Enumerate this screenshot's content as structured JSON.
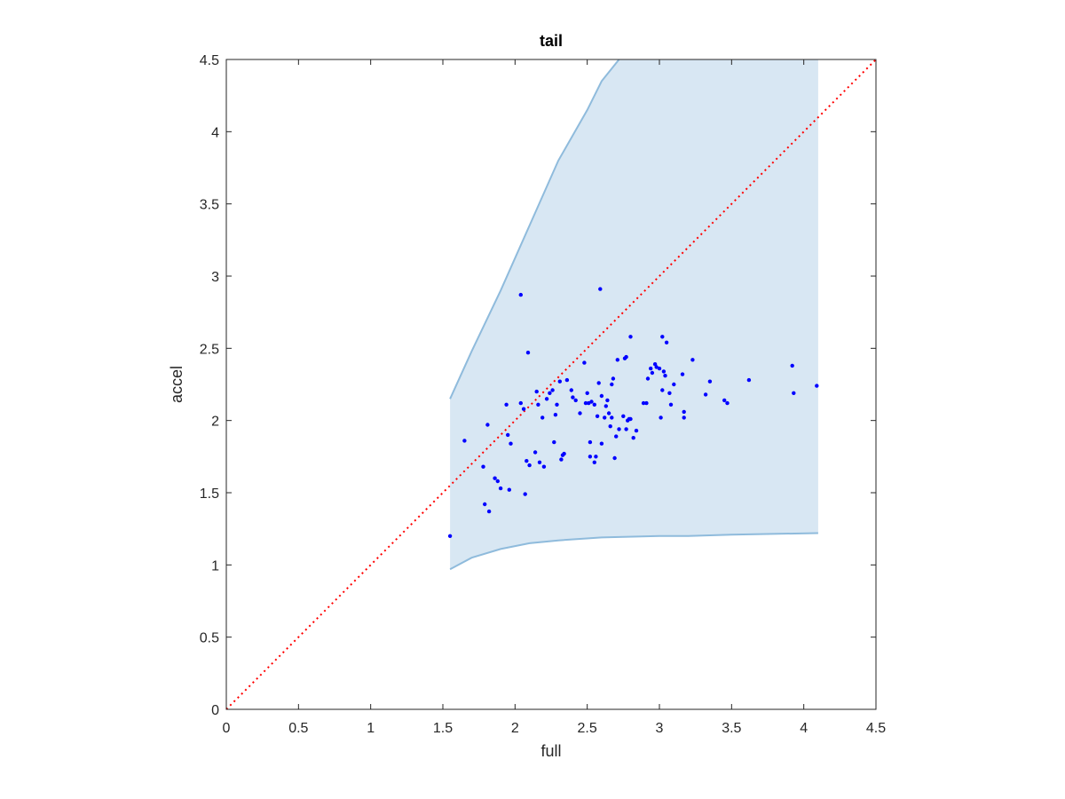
{
  "chart_data": {
    "type": "scatter",
    "title": "tail",
    "xlabel": "full",
    "ylabel": "accel",
    "xlim": [
      0,
      4.5
    ],
    "ylim": [
      0,
      4.5
    ],
    "xticks": [
      0,
      0.5,
      1,
      1.5,
      2,
      2.5,
      3,
      3.5,
      4,
      4.5
    ],
    "yticks": [
      0,
      0.5,
      1,
      1.5,
      2,
      2.5,
      3,
      3.5,
      4,
      4.5
    ],
    "xtick_labels": [
      "0",
      "0.5",
      "1",
      "1.5",
      "2",
      "2.5",
      "3",
      "3.5",
      "4",
      "4.5"
    ],
    "ytick_labels": [
      "0",
      "0.5",
      "1",
      "1.5",
      "2",
      "2.5",
      "3",
      "3.5",
      "4",
      "4.5"
    ],
    "grid": false,
    "reference_line": {
      "x": [
        0,
        4.5
      ],
      "y": [
        0,
        4.5
      ],
      "color": "#ff0000",
      "style": "dotted"
    },
    "band": {
      "color": "#d8e7f3",
      "edge_color": "#8fbbdc",
      "upper": [
        [
          1.55,
          2.15
        ],
        [
          1.7,
          2.48
        ],
        [
          1.9,
          2.9
        ],
        [
          2.1,
          3.35
        ],
        [
          2.3,
          3.8
        ],
        [
          2.5,
          4.15
        ],
        [
          2.6,
          4.35
        ],
        [
          2.72,
          4.5
        ],
        [
          4.1,
          4.5
        ]
      ],
      "lower": [
        [
          1.55,
          0.97
        ],
        [
          1.7,
          1.05
        ],
        [
          1.9,
          1.11
        ],
        [
          2.1,
          1.15
        ],
        [
          2.3,
          1.17
        ],
        [
          2.6,
          1.19
        ],
        [
          3.0,
          1.2
        ],
        [
          3.2,
          1.2
        ],
        [
          3.5,
          1.21
        ],
        [
          4.1,
          1.22
        ]
      ]
    },
    "series": [
      {
        "color": "#0000ff",
        "points": [
          [
            1.55,
            1.2
          ],
          [
            1.65,
            1.86
          ],
          [
            1.78,
            1.68
          ],
          [
            1.79,
            1.42
          ],
          [
            1.81,
            1.97
          ],
          [
            1.82,
            1.37
          ],
          [
            1.86,
            1.6
          ],
          [
            1.88,
            1.58
          ],
          [
            1.9,
            1.53
          ],
          [
            1.94,
            2.11
          ],
          [
            1.95,
            1.9
          ],
          [
            1.96,
            1.52
          ],
          [
            1.97,
            1.84
          ],
          [
            2.04,
            2.87
          ],
          [
            2.04,
            2.12
          ],
          [
            2.06,
            2.08
          ],
          [
            2.07,
            1.49
          ],
          [
            2.08,
            1.72
          ],
          [
            2.09,
            2.47
          ],
          [
            2.1,
            1.69
          ],
          [
            2.14,
            1.78
          ],
          [
            2.15,
            2.2
          ],
          [
            2.16,
            2.11
          ],
          [
            2.17,
            1.71
          ],
          [
            2.19,
            2.02
          ],
          [
            2.2,
            1.68
          ],
          [
            2.22,
            2.15
          ],
          [
            2.24,
            2.19
          ],
          [
            2.26,
            2.21
          ],
          [
            2.27,
            1.85
          ],
          [
            2.28,
            2.04
          ],
          [
            2.29,
            2.11
          ],
          [
            2.31,
            2.27
          ],
          [
            2.32,
            1.73
          ],
          [
            2.33,
            1.76
          ],
          [
            2.34,
            1.77
          ],
          [
            2.36,
            2.28
          ],
          [
            2.39,
            2.21
          ],
          [
            2.4,
            2.16
          ],
          [
            2.42,
            2.14
          ],
          [
            2.45,
            2.05
          ],
          [
            2.48,
            2.4
          ],
          [
            2.49,
            2.12
          ],
          [
            2.5,
            2.19
          ],
          [
            2.51,
            2.12
          ],
          [
            2.52,
            1.85
          ],
          [
            2.52,
            1.75
          ],
          [
            2.53,
            2.13
          ],
          [
            2.55,
            2.11
          ],
          [
            2.55,
            1.71
          ],
          [
            2.56,
            1.75
          ],
          [
            2.57,
            2.03
          ],
          [
            2.58,
            2.26
          ],
          [
            2.59,
            2.91
          ],
          [
            2.6,
            2.17
          ],
          [
            2.6,
            1.84
          ],
          [
            2.62,
            2.02
          ],
          [
            2.63,
            2.1
          ],
          [
            2.64,
            2.14
          ],
          [
            2.65,
            2.05
          ],
          [
            2.66,
            1.96
          ],
          [
            2.67,
            2.25
          ],
          [
            2.67,
            2.02
          ],
          [
            2.68,
            2.29
          ],
          [
            2.69,
            1.74
          ],
          [
            2.7,
            1.89
          ],
          [
            2.71,
            2.42
          ],
          [
            2.72,
            1.94
          ],
          [
            2.75,
            2.03
          ],
          [
            2.76,
            2.43
          ],
          [
            2.77,
            2.44
          ],
          [
            2.77,
            1.94
          ],
          [
            2.78,
            2.0
          ],
          [
            2.79,
            2.01
          ],
          [
            2.8,
            2.58
          ],
          [
            2.8,
            2.01
          ],
          [
            2.82,
            1.88
          ],
          [
            2.84,
            1.93
          ],
          [
            2.89,
            2.12
          ],
          [
            2.91,
            2.12
          ],
          [
            2.92,
            2.29
          ],
          [
            2.94,
            2.36
          ],
          [
            2.95,
            2.33
          ],
          [
            2.97,
            2.39
          ],
          [
            2.98,
            2.37
          ],
          [
            3.0,
            2.36
          ],
          [
            3.01,
            2.02
          ],
          [
            3.02,
            2.58
          ],
          [
            3.02,
            2.21
          ],
          [
            3.03,
            2.34
          ],
          [
            3.04,
            2.31
          ],
          [
            3.05,
            2.54
          ],
          [
            3.07,
            2.19
          ],
          [
            3.08,
            2.11
          ],
          [
            3.1,
            2.25
          ],
          [
            3.16,
            2.32
          ],
          [
            3.17,
            2.06
          ],
          [
            3.17,
            2.02
          ],
          [
            3.23,
            2.42
          ],
          [
            3.32,
            2.18
          ],
          [
            3.35,
            2.27
          ],
          [
            3.45,
            2.14
          ],
          [
            3.47,
            2.12
          ],
          [
            3.62,
            2.28
          ],
          [
            3.92,
            2.38
          ],
          [
            3.93,
            2.19
          ],
          [
            4.09,
            2.24
          ]
        ]
      }
    ]
  }
}
